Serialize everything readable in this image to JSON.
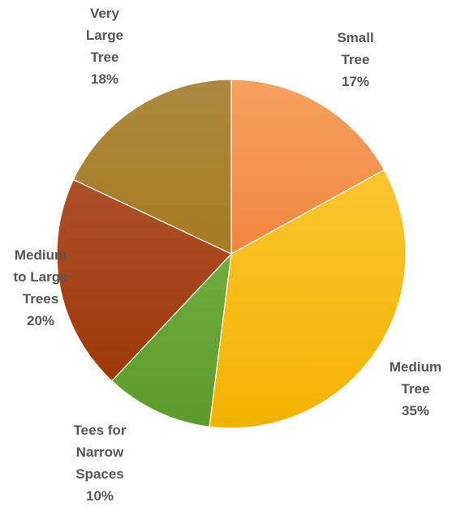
{
  "chart_data": {
    "type": "pie",
    "title": "",
    "slices": [
      {
        "label_lines": [
          "Small",
          "Tree"
        ],
        "pct_label": "17%",
        "value": 17,
        "color_light": "#f5a060",
        "color_dark": "#ef6c1e"
      },
      {
        "label_lines": [
          "Medium",
          "Tree"
        ],
        "pct_label": "35%",
        "value": 35,
        "color_light": "#ffcc40",
        "color_dark": "#f2b200"
      },
      {
        "label_lines": [
          "Tees for",
          "Narrow",
          "Spaces"
        ],
        "pct_label": "10%",
        "value": 10,
        "color_light": "#80bf50",
        "color_dark": "#5c9a2c"
      },
      {
        "label_lines": [
          "Medium",
          "to Large",
          "Trees"
        ],
        "pct_label": "20%",
        "value": 20,
        "color_light": "#b85a3a",
        "color_dark": "#983400"
      },
      {
        "label_lines": [
          "Very",
          "Large",
          "Tree"
        ],
        "pct_label": "18%",
        "value": 18,
        "color_light": "#ad8840",
        "color_dark": "#9c6e00"
      }
    ]
  }
}
